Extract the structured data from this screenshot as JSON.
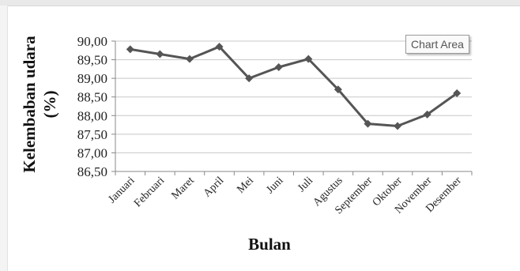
{
  "tooltip": {
    "label": "Chart Area"
  },
  "chart_data": {
    "type": "line",
    "title": "",
    "xlabel": "Bulan",
    "ylabel_line1": "Kelembaban udara",
    "ylabel_line2": "(%)",
    "categories": [
      "Januari",
      "Februari",
      "Maret",
      "April",
      "Mei",
      "Juni",
      "Juli",
      "Agustus",
      "September",
      "Oktober",
      "November",
      "Desember"
    ],
    "series": [
      {
        "values": [
          89.78,
          89.65,
          89.52,
          89.85,
          89.0,
          89.3,
          89.52,
          88.7,
          87.78,
          87.72,
          88.03,
          88.6
        ],
        "color": "#555555"
      }
    ],
    "yticks": [
      "86,50",
      "87,00",
      "87,50",
      "88,00",
      "88,50",
      "89,00",
      "89,50",
      "90,00"
    ],
    "ylim": [
      86.5,
      90.0
    ],
    "grid": true,
    "legend": "none"
  }
}
